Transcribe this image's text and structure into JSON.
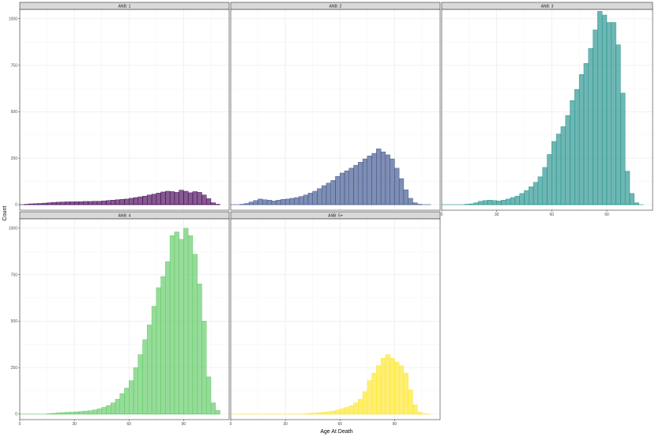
{
  "chart_data": {
    "type": "bar",
    "xlabel": "Age At Death",
    "ylabel": "Count",
    "xlim": [
      0,
      115
    ],
    "ylim": [
      -30,
      1050
    ],
    "x_ticks": [
      0,
      30,
      60,
      90
    ],
    "y_ticks": [
      0,
      250,
      500,
      750,
      1000
    ],
    "y_tick_labels": [
      "0",
      "250",
      "500",
      "750",
      "1000"
    ],
    "bin_width": 2.5,
    "bin_centers": [
      1.25,
      3.75,
      6.25,
      8.75,
      11.25,
      13.75,
      16.25,
      18.75,
      21.25,
      23.75,
      26.25,
      28.75,
      31.25,
      33.75,
      36.25,
      38.75,
      41.25,
      43.75,
      46.25,
      48.75,
      51.25,
      53.75,
      56.25,
      58.75,
      61.25,
      63.75,
      66.25,
      68.75,
      71.25,
      73.75,
      76.25,
      78.75,
      81.25,
      83.75,
      86.25,
      88.75,
      91.25,
      93.75,
      96.25,
      98.75,
      101.25,
      103.75,
      106.25,
      108.75
    ],
    "panels": [
      {
        "strip": "ANB: 1",
        "color": "#440154",
        "values": [
          0,
          2,
          4,
          5,
          6,
          8,
          10,
          12,
          13,
          14,
          15,
          15,
          16,
          16,
          17,
          17,
          18,
          18,
          20,
          22,
          24,
          26,
          28,
          30,
          34,
          38,
          42,
          46,
          52,
          56,
          62,
          68,
          72,
          70,
          66,
          78,
          72,
          64,
          70,
          66,
          52,
          32,
          10,
          2
        ]
      },
      {
        "strip": "ANB: 2",
        "color": "#3B528B",
        "values": [
          0,
          0,
          2,
          6,
          14,
          22,
          30,
          26,
          24,
          20,
          24,
          28,
          30,
          34,
          38,
          44,
          52,
          62,
          72,
          86,
          102,
          116,
          130,
          152,
          170,
          182,
          196,
          212,
          228,
          246,
          262,
          276,
          300,
          284,
          268,
          246,
          196,
          140,
          80,
          34,
          10,
          2,
          0,
          0
        ]
      },
      {
        "strip": "ANB: 3",
        "color": "#21918C",
        "values": [
          0,
          0,
          0,
          0,
          0,
          2,
          4,
          10,
          18,
          22,
          24,
          22,
          20,
          24,
          30,
          38,
          46,
          60,
          76,
          96,
          120,
          150,
          200,
          270,
          340,
          380,
          420,
          480,
          560,
          620,
          700,
          760,
          840,
          940,
          1040,
          1020,
          980,
          980,
          860,
          600,
          180,
          60,
          10,
          0
        ]
      },
      {
        "strip": "ANB: 4",
        "color": "#5EC962",
        "values": [
          0,
          0,
          0,
          0,
          0,
          0,
          2,
          4,
          6,
          8,
          10,
          10,
          12,
          14,
          16,
          18,
          22,
          28,
          36,
          46,
          60,
          80,
          110,
          140,
          180,
          250,
          320,
          400,
          480,
          580,
          680,
          740,
          820,
          960,
          980,
          940,
          1000,
          960,
          860,
          700,
          500,
          200,
          60,
          20
        ]
      },
      {
        "strip": "ANB: 5+",
        "color": "#FDE725",
        "values": [
          0,
          0,
          0,
          0,
          0,
          0,
          0,
          0,
          0,
          0,
          0,
          0,
          0,
          0,
          0,
          0,
          2,
          4,
          6,
          8,
          10,
          12,
          16,
          22,
          28,
          36,
          46,
          60,
          80,
          120,
          180,
          220,
          260,
          300,
          320,
          300,
          280,
          260,
          220,
          130,
          50,
          10,
          2,
          0
        ]
      }
    ]
  }
}
